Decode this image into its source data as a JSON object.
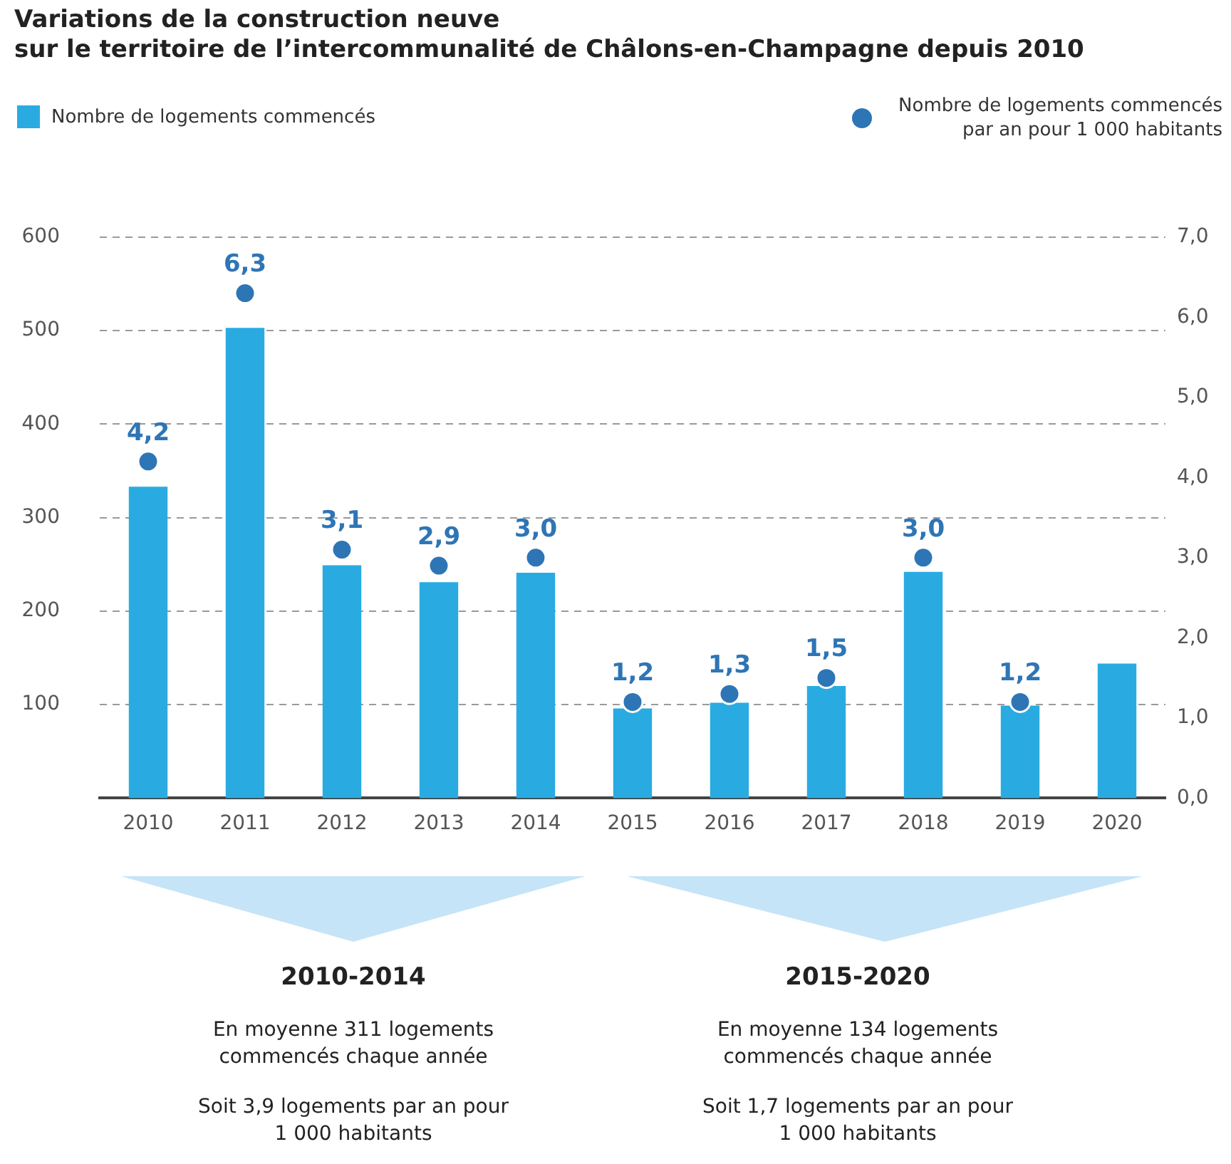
{
  "chart_data": {
    "type": "bar",
    "title": "Variations de la construction neuve\nsur le territoire de l’intercommunalité de Châlons-en-Champagne depuis 2010",
    "categories": [
      "2010",
      "2011",
      "2012",
      "2013",
      "2014",
      "2015",
      "2016",
      "2017",
      "2018",
      "2019",
      "2020"
    ],
    "series": [
      {
        "name": "Nombre de logements commencés",
        "color": "#29abe2",
        "values": [
          333,
          503,
          249,
          231,
          241,
          96,
          102,
          120,
          242,
          99,
          144
        ]
      },
      {
        "name": "Nombre de logements commencés par an pour 1 000 habitants",
        "type": "scatter",
        "axis": "y2",
        "color": "#2e75b6",
        "marker": "circle",
        "values": [
          4.2,
          6.3,
          3.1,
          2.9,
          3.0,
          1.2,
          1.3,
          1.5,
          3.0,
          1.2,
          null
        ],
        "value_labels": [
          "4,2",
          "6,3",
          "3,1",
          "2,9",
          "3,0",
          "1,2",
          "1,3",
          "1,5",
          "3,0",
          "1,2",
          null
        ]
      }
    ],
    "ylim": [
      0,
      600
    ],
    "yticks": [
      100,
      200,
      300,
      400,
      500,
      600
    ],
    "y2lim": [
      0,
      7
    ],
    "y2ticks": [
      {
        "value": 0,
        "label": "0,0"
      },
      {
        "value": 1,
        "label": "1,0"
      },
      {
        "value": 2,
        "label": "2,0"
      },
      {
        "value": 3,
        "label": "3,0"
      },
      {
        "value": 4,
        "label": "4,0"
      },
      {
        "value": 5,
        "label": "5,0"
      },
      {
        "value": 6,
        "label": "6,0"
      },
      {
        "value": 7,
        "label": "7,0"
      }
    ],
    "grid": "y",
    "legend": "top",
    "annotations": [
      "2010-2014",
      "En moyenne 311 logements commencés chaque année",
      "Soit 3,9 logements par an pour 1 000 habitants",
      "2015-2020",
      "En moyenne 134 logements commencés chaque année",
      "Soit 1,7 logements par an pour 1 000 habitants"
    ]
  }
}
